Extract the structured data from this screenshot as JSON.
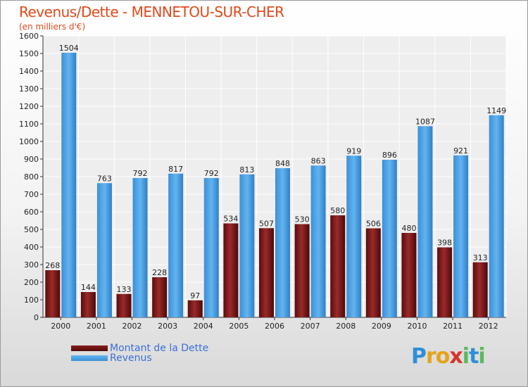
{
  "title": "Revenus/Dette - MENNETOU-SUR-CHER",
  "subtitle": "(en milliers d'€)",
  "legend": {
    "debt_label": "Montant de la Dette",
    "revenue_label": "Revenus"
  },
  "logo": {
    "text": "Proxiti"
  },
  "colors": {
    "debt": "#7a1414",
    "revenue": "#4fa3e6",
    "title": "#e0491b",
    "legend_text": "#3b6fd8"
  },
  "chart_data": {
    "type": "bar",
    "title": "Revenus/Dette - MENNETOU-SUR-CHER",
    "ylabel": "(en milliers d'€)",
    "ylim": [
      0,
      1600
    ],
    "yticks": [
      0,
      100,
      200,
      300,
      400,
      500,
      600,
      700,
      800,
      900,
      1000,
      1100,
      1200,
      1300,
      1400,
      1500,
      1600
    ],
    "grid": true,
    "categories": [
      "2000",
      "2001",
      "2002",
      "2003",
      "2004",
      "2005",
      "2006",
      "2007",
      "2008",
      "2009",
      "2010",
      "2011",
      "2012"
    ],
    "series": [
      {
        "name": "Montant de la Dette",
        "values": [
          268,
          144,
          133,
          228,
          97,
          534,
          507,
          530,
          580,
          506,
          480,
          398,
          313
        ]
      },
      {
        "name": "Revenus",
        "values": [
          1504,
          763,
          792,
          817,
          792,
          813,
          848,
          863,
          919,
          896,
          1087,
          921,
          1149
        ]
      }
    ]
  }
}
